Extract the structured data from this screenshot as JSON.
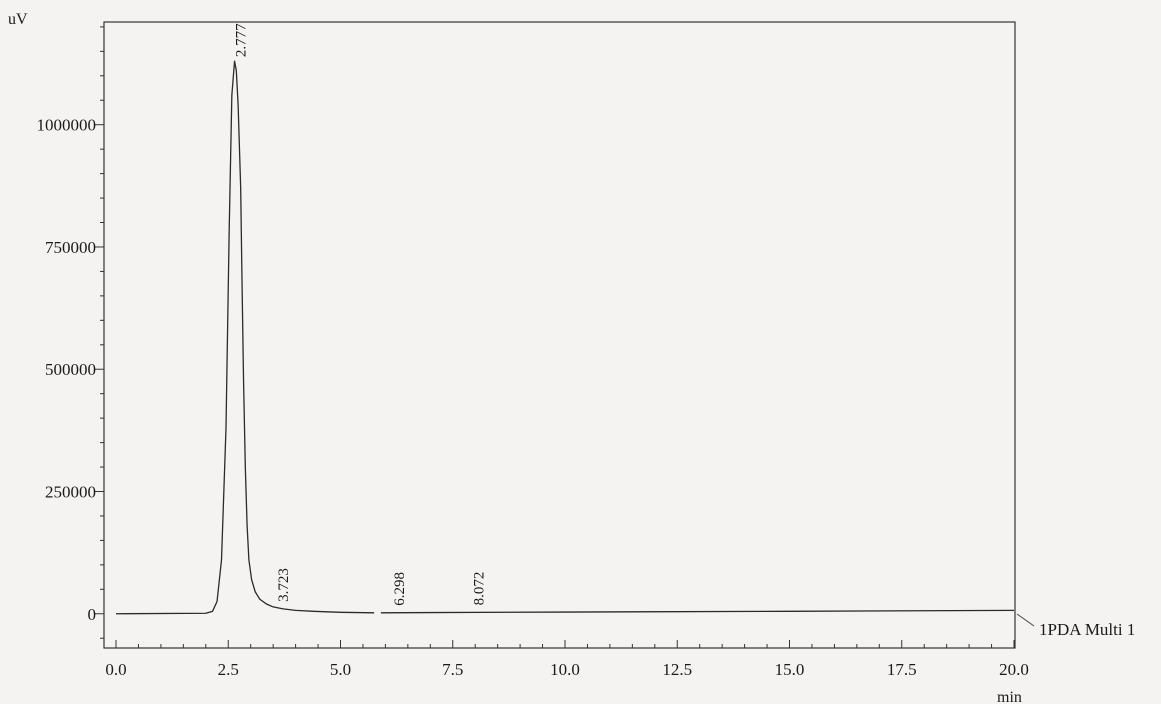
{
  "chart_data": {
    "type": "line",
    "y_unit": "uV",
    "x_unit": "min",
    "xlim": [
      0,
      20
    ],
    "ylim": [
      -70000,
      1210000
    ],
    "x_ticks": [
      0,
      2.5,
      5,
      7.5,
      10,
      12.5,
      15,
      17.5,
      20
    ],
    "x_tick_labels": [
      "0.0",
      "2.5",
      "5.0",
      "7.5",
      "10.0",
      "12.5",
      "15.0",
      "17.5",
      "20.0"
    ],
    "y_ticks": [
      0,
      250000,
      500000,
      750000,
      1000000
    ],
    "y_tick_labels": [
      "0",
      "250000",
      "500000",
      "750000",
      "1000000"
    ],
    "grid": false,
    "series": [
      {
        "name": "1PDA Multi 1",
        "color": "#2a2a2a",
        "gap": [
          5.75,
          5.9
        ],
        "x": [
          0,
          2.0,
          2.15,
          2.25,
          2.35,
          2.45,
          2.52,
          2.58,
          2.64,
          2.68,
          2.72,
          2.777,
          2.8,
          2.84,
          2.88,
          2.92,
          2.96,
          3.02,
          3.1,
          3.2,
          3.35,
          3.5,
          3.723,
          4.0,
          4.4,
          5.0,
          5.75,
          5.9,
          7.0,
          10.0,
          15.0,
          20.0
        ],
        "y": [
          0,
          1000,
          5000,
          25000,
          110000,
          380000,
          780000,
          1060000,
          1130000,
          1110000,
          1040000,
          870000,
          720000,
          480000,
          300000,
          180000,
          110000,
          70000,
          45000,
          30000,
          20000,
          14000,
          10000,
          7000,
          5000,
          3000,
          2000,
          2000,
          2500,
          3500,
          5000,
          7000
        ]
      }
    ],
    "peaks": [
      {
        "rt": 2.777,
        "label": "2.777"
      },
      {
        "rt": 3.723,
        "label": "3.723"
      },
      {
        "rt": 6.298,
        "label": "6.298"
      },
      {
        "rt": 8.072,
        "label": "8.072"
      }
    ]
  }
}
